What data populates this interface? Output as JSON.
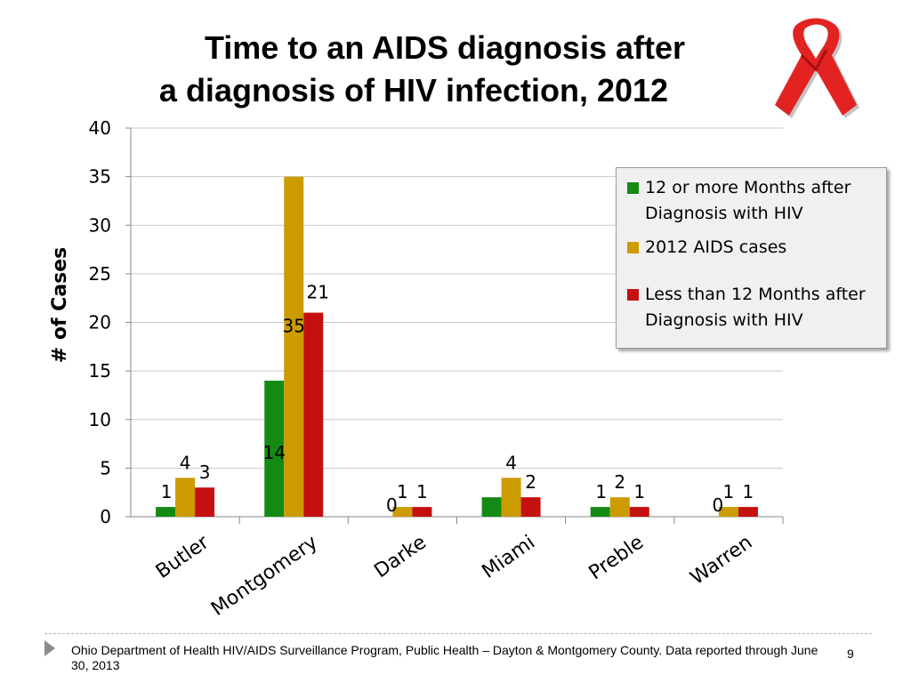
{
  "slide": {
    "title_line1": "Time to an AIDS diagnosis after",
    "title_line2": "a diagnosis of HIV infection, 2012",
    "footer": "Ohio Department of Health HIV/AIDS Surveillance Program, Public Health – Dayton & Montgomery County.  Data reported through June 30, 2013",
    "page_number": "9"
  },
  "colors": {
    "series": [
      "#138a14",
      "#cc9b00",
      "#c51010"
    ],
    "ribbon": "#e32222",
    "grid": "#c9c9c9"
  },
  "icons": {
    "ribbon": "red-awareness-ribbon-icon"
  },
  "chart_data": {
    "type": "bar",
    "ylabel": "# of Cases",
    "xlabel": "",
    "ylim": [
      0,
      40
    ],
    "yticks": [
      0,
      5,
      10,
      15,
      20,
      25,
      30,
      35,
      40
    ],
    "grid": true,
    "legend_position": "right",
    "categories": [
      "Butler",
      "Montgomery",
      "Darke",
      "Miami",
      "Preble",
      "Warren"
    ],
    "series": [
      {
        "name": "12 or more Months after Diagnosis with HIV",
        "values": [
          1,
          14,
          0,
          2,
          1,
          0
        ],
        "labels": [
          "1",
          "14",
          "0",
          "",
          "1",
          "0"
        ]
      },
      {
        "name": "2012 AIDS cases",
        "values": [
          4,
          35,
          1,
          4,
          2,
          1
        ],
        "labels": [
          "4",
          "35",
          "1",
          "4",
          "2",
          "1"
        ]
      },
      {
        "name": "Less than 12 Months after Diagnosis with HIV",
        "values": [
          3,
          21,
          1,
          2,
          1,
          1
        ],
        "labels": [
          "3",
          "21",
          "1",
          "2",
          "1",
          "1"
        ]
      }
    ]
  }
}
